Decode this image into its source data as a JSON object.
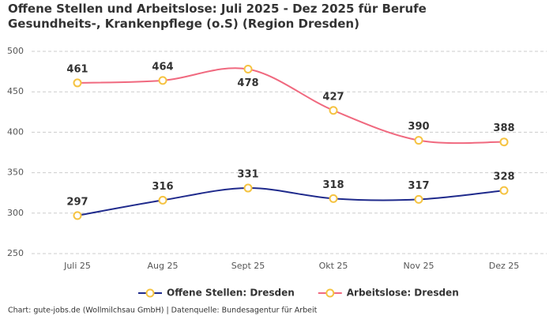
{
  "chart_data": {
    "type": "line",
    "title": "Offene Stellen und Arbeitslose: Juli 2025 - Dez 2025 für Berufe Gesundheits-, Krankenpflege (o.S) (Region Dresden)",
    "categories": [
      "Juli 25",
      "Aug 25",
      "Sept 25",
      "Okt 25",
      "Nov 25",
      "Dez 25"
    ],
    "series": [
      {
        "name": "Offene Stellen: Dresden",
        "color": "#1f2a8c",
        "values": [
          297,
          316,
          331,
          318,
          317,
          328
        ]
      },
      {
        "name": "Arbeitslose: Dresden",
        "color": "#f0697f",
        "values": [
          461,
          464,
          478,
          427,
          390,
          388
        ]
      }
    ],
    "marker_color": "#f5c342",
    "ylim": [
      250,
      500
    ],
    "yticks": [
      250,
      300,
      350,
      400,
      450,
      500
    ],
    "grid": true,
    "footer": "Chart: gute-jobs.de (Wollmilchsau GmbH) | Datenquelle: Bundesagentur für Arbeit"
  }
}
